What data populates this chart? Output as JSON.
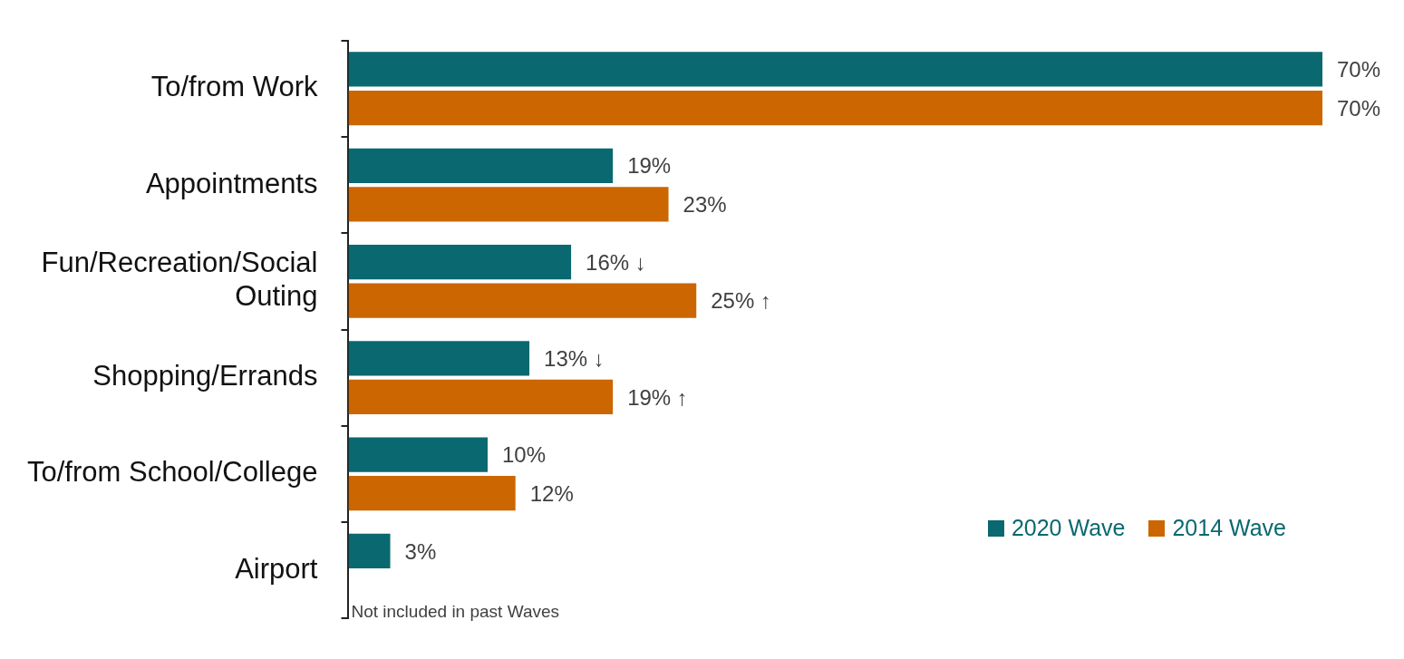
{
  "chart_data": {
    "type": "bar",
    "orientation": "horizontal",
    "tick_labels": "y",
    "categories": [
      "To/from Work",
      "Appointments",
      "Fun/Recreation/Social Outing",
      "Shopping/Errands",
      "To/from School/College",
      "Airport"
    ],
    "series": [
      {
        "name": "2020 Wave",
        "color": "#0a6870",
        "values": [
          70,
          19,
          16,
          13,
          10,
          3
        ],
        "value_labels": [
          "70%",
          "19%",
          "16% ↓",
          "13% ↓",
          "10%",
          "3%"
        ]
      },
      {
        "name": "2014 Wave",
        "color": "#cc6600",
        "values": [
          70,
          23,
          25,
          19,
          12,
          null
        ],
        "value_labels": [
          "70%",
          "23%",
          "25% ↑",
          "19% ↑",
          "12%",
          null
        ]
      }
    ],
    "legend": "bottom right",
    "annotations": [
      "Not included in past Waves"
    ]
  }
}
